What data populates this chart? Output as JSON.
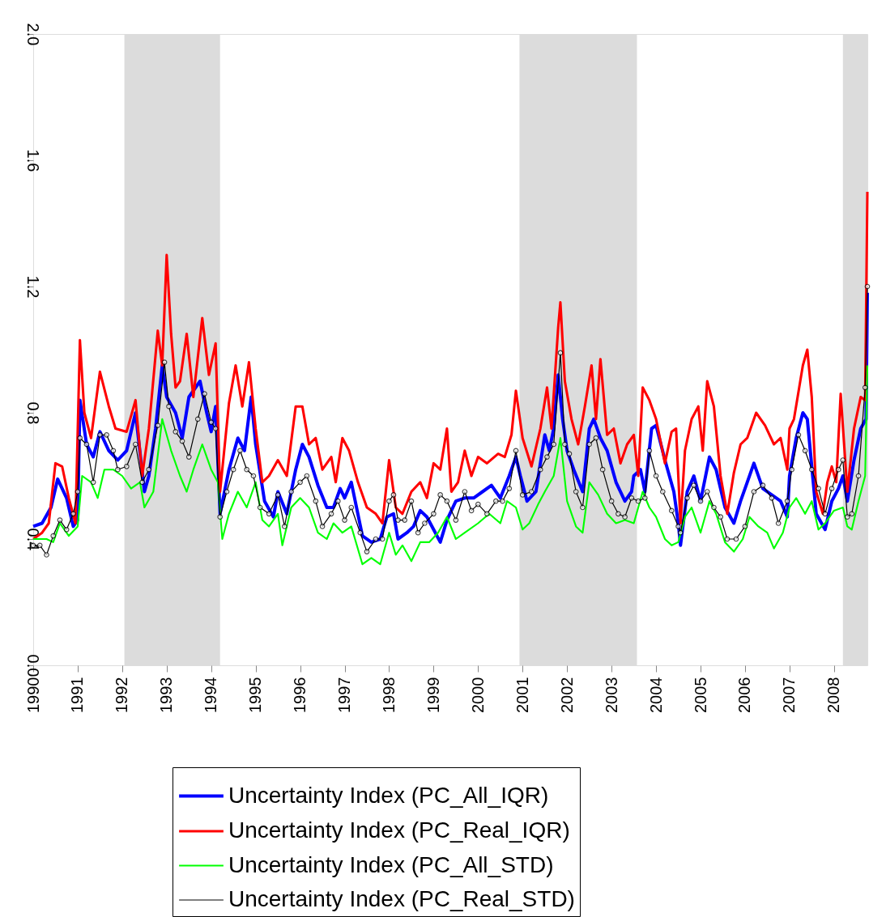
{
  "chart_data": {
    "type": "line",
    "xlim": [
      1990,
      2008.75
    ],
    "xticks": [
      1990,
      1991,
      1992,
      1993,
      1994,
      1995,
      1996,
      1997,
      1998,
      1999,
      2000,
      2001,
      2002,
      2003,
      2004,
      2005,
      2006,
      2007,
      2008
    ],
    "ylim": [
      0,
      2
    ],
    "yticks": [
      {
        "value": 0,
        "label": "0.0"
      },
      0.4,
      0.8,
      1.2,
      1.6,
      {
        "value": 2,
        "label": "2.0"
      }
    ],
    "grid": false,
    "legend": "bottom",
    "bands": [
      {
        "axis": "x",
        "from": 1992.05,
        "to": 1994.2,
        "color": "#dcdcdc"
      },
      {
        "axis": "x",
        "from": 2000.93,
        "to": 2003.57,
        "color": "#dcdcdc"
      },
      {
        "axis": "x",
        "from": 2008.2,
        "to": 2008.75,
        "color": "#dcdcdc"
      }
    ],
    "series": [
      {
        "name": "Uncertainty Index (PC_All_IQR)",
        "color": "#0000ff",
        "x": [
          1990.0,
          1990.2,
          1990.4,
          1990.55,
          1990.75,
          1990.9,
          1991.0,
          1991.05,
          1991.2,
          1991.35,
          1991.5,
          1991.7,
          1991.9,
          1992.1,
          1992.3,
          1992.5,
          1992.6,
          1992.75,
          1992.9,
          1993.0,
          1993.2,
          1993.35,
          1993.5,
          1993.75,
          1993.9,
          1994.0,
          1994.1,
          1994.2,
          1994.4,
          1994.6,
          1994.75,
          1994.9,
          1995.0,
          1995.2,
          1995.4,
          1995.5,
          1995.7,
          1995.9,
          1996.05,
          1996.2,
          1996.4,
          1996.6,
          1996.75,
          1996.9,
          1997.0,
          1997.15,
          1997.4,
          1997.6,
          1997.8,
          1997.95,
          1998.1,
          1998.2,
          1998.4,
          1998.55,
          1998.7,
          1998.85,
          1999.0,
          1999.15,
          1999.3,
          1999.5,
          1999.7,
          1999.9,
          2000.1,
          2000.3,
          2000.5,
          2000.7,
          2000.85,
          2000.95,
          2001.1,
          2001.3,
          2001.5,
          2001.6,
          2001.7,
          2001.8,
          2001.9,
          2002.0,
          2002.15,
          2002.35,
          2002.5,
          2002.6,
          2002.75,
          2002.9,
          2003.1,
          2003.3,
          2003.45,
          2003.5,
          2003.65,
          2003.75,
          2003.9,
          2004.0,
          2004.2,
          2004.4,
          2004.5,
          2004.55,
          2004.7,
          2004.85,
          2005.0,
          2005.2,
          2005.35,
          2005.55,
          2005.75,
          2005.9,
          2006.05,
          2006.2,
          2006.4,
          2006.6,
          2006.8,
          2006.95,
          2007.0,
          2007.15,
          2007.3,
          2007.4,
          2007.5,
          2007.6,
          2007.8,
          2007.95,
          2008.1,
          2008.2,
          2008.3,
          2008.45,
          2008.6,
          2008.72,
          2008.75
        ],
        "values": [
          0.44,
          0.45,
          0.5,
          0.59,
          0.53,
          0.44,
          0.46,
          0.84,
          0.7,
          0.66,
          0.74,
          0.68,
          0.65,
          0.68,
          0.8,
          0.55,
          0.6,
          0.75,
          0.95,
          0.85,
          0.8,
          0.72,
          0.85,
          0.9,
          0.8,
          0.74,
          0.82,
          0.48,
          0.62,
          0.72,
          0.68,
          0.85,
          0.7,
          0.52,
          0.47,
          0.55,
          0.48,
          0.62,
          0.7,
          0.66,
          0.57,
          0.5,
          0.5,
          0.56,
          0.53,
          0.58,
          0.41,
          0.39,
          0.4,
          0.47,
          0.48,
          0.4,
          0.42,
          0.44,
          0.49,
          0.47,
          0.43,
          0.39,
          0.46,
          0.52,
          0.53,
          0.53,
          0.55,
          0.57,
          0.53,
          0.6,
          0.66,
          0.6,
          0.52,
          0.55,
          0.73,
          0.68,
          0.75,
          0.92,
          0.78,
          0.68,
          0.62,
          0.55,
          0.75,
          0.78,
          0.72,
          0.68,
          0.58,
          0.52,
          0.55,
          0.6,
          0.62,
          0.55,
          0.75,
          0.76,
          0.65,
          0.55,
          0.45,
          0.38,
          0.55,
          0.6,
          0.52,
          0.66,
          0.62,
          0.5,
          0.45,
          0.52,
          0.58,
          0.64,
          0.56,
          0.54,
          0.52,
          0.47,
          0.6,
          0.72,
          0.8,
          0.78,
          0.63,
          0.48,
          0.43,
          0.52,
          0.56,
          0.6,
          0.52,
          0.65,
          0.75,
          0.78,
          1.18
        ]
      },
      {
        "name": "Uncertainty Index (PC_Real_IQR)",
        "color": "#ff0000",
        "x": [
          1990.0,
          1990.2,
          1990.35,
          1990.5,
          1990.65,
          1990.8,
          1990.95,
          1991.05,
          1991.15,
          1991.3,
          1991.5,
          1991.7,
          1991.85,
          1992.1,
          1992.3,
          1992.45,
          1992.6,
          1992.8,
          1992.9,
          1993.0,
          1993.1,
          1993.2,
          1993.3,
          1993.45,
          1993.6,
          1993.8,
          1993.95,
          1994.1,
          1994.2,
          1994.4,
          1994.55,
          1994.7,
          1994.85,
          1995.0,
          1995.15,
          1995.3,
          1995.5,
          1995.7,
          1995.9,
          1996.05,
          1996.2,
          1996.35,
          1996.5,
          1996.7,
          1996.8,
          1996.95,
          1997.1,
          1997.3,
          1997.5,
          1997.7,
          1997.85,
          1998.0,
          1998.15,
          1998.3,
          1998.5,
          1998.7,
          1998.85,
          1999.0,
          1999.15,
          1999.3,
          1999.4,
          1999.55,
          1999.7,
          1999.85,
          2000.0,
          2000.2,
          2000.45,
          2000.6,
          2000.75,
          2000.85,
          2001.0,
          2001.2,
          2001.4,
          2001.55,
          2001.65,
          2001.8,
          2001.85,
          2001.95,
          2002.1,
          2002.25,
          2002.4,
          2002.55,
          2002.65,
          2002.75,
          2002.9,
          2003.05,
          2003.2,
          2003.35,
          2003.5,
          2003.6,
          2003.7,
          2003.85,
          2004.0,
          2004.2,
          2004.35,
          2004.45,
          2004.55,
          2004.65,
          2004.8,
          2004.95,
          2005.05,
          2005.15,
          2005.3,
          2005.45,
          2005.6,
          2005.75,
          2005.9,
          2006.05,
          2006.25,
          2006.45,
          2006.65,
          2006.8,
          2006.95,
          2007.0,
          2007.1,
          2007.3,
          2007.4,
          2007.5,
          2007.6,
          2007.75,
          2007.85,
          2007.95,
          2008.05,
          2008.15,
          2008.3,
          2008.45,
          2008.6,
          2008.7,
          2008.75
        ],
        "values": [
          0.4,
          0.42,
          0.45,
          0.64,
          0.63,
          0.53,
          0.45,
          1.03,
          0.8,
          0.72,
          0.93,
          0.82,
          0.75,
          0.74,
          0.84,
          0.6,
          0.75,
          1.06,
          0.95,
          1.3,
          1.05,
          0.88,
          0.9,
          1.05,
          0.85,
          1.1,
          0.92,
          1.02,
          0.55,
          0.83,
          0.95,
          0.82,
          0.96,
          0.75,
          0.58,
          0.6,
          0.65,
          0.6,
          0.82,
          0.82,
          0.7,
          0.72,
          0.62,
          0.66,
          0.58,
          0.72,
          0.68,
          0.58,
          0.5,
          0.48,
          0.45,
          0.65,
          0.5,
          0.48,
          0.55,
          0.58,
          0.53,
          0.64,
          0.62,
          0.75,
          0.55,
          0.58,
          0.68,
          0.6,
          0.66,
          0.64,
          0.67,
          0.66,
          0.73,
          0.87,
          0.72,
          0.63,
          0.75,
          0.88,
          0.75,
          1.07,
          1.15,
          0.9,
          0.78,
          0.7,
          0.82,
          0.95,
          0.78,
          0.97,
          0.73,
          0.75,
          0.64,
          0.7,
          0.73,
          0.6,
          0.88,
          0.84,
          0.78,
          0.64,
          0.74,
          0.75,
          0.45,
          0.68,
          0.78,
          0.82,
          0.68,
          0.9,
          0.82,
          0.6,
          0.48,
          0.61,
          0.7,
          0.72,
          0.8,
          0.76,
          0.7,
          0.72,
          0.62,
          0.75,
          0.78,
          0.95,
          1.0,
          0.85,
          0.55,
          0.48,
          0.58,
          0.63,
          0.58,
          0.86,
          0.55,
          0.75,
          0.85,
          0.84,
          1.5
        ]
      },
      {
        "name": "Uncertainty Index (PC_All_STD)",
        "color": "#00ff00",
        "x": [
          1990.0,
          1990.3,
          1990.45,
          1990.6,
          1990.8,
          1991.0,
          1991.1,
          1991.3,
          1991.45,
          1991.6,
          1991.8,
          1992.0,
          1992.2,
          1992.4,
          1992.5,
          1992.7,
          1992.9,
          1993.1,
          1993.3,
          1993.45,
          1993.6,
          1993.8,
          1994.0,
          1994.15,
          1994.25,
          1994.4,
          1994.6,
          1994.8,
          1995.0,
          1995.15,
          1995.3,
          1995.5,
          1995.6,
          1995.8,
          1996.0,
          1996.2,
          1996.4,
          1996.6,
          1996.75,
          1996.95,
          1997.15,
          1997.4,
          1997.6,
          1997.8,
          1998.0,
          1998.15,
          1998.3,
          1998.5,
          1998.7,
          1998.9,
          1999.1,
          1999.3,
          1999.5,
          1999.7,
          2000.0,
          2000.25,
          2000.5,
          2000.65,
          2000.85,
          2001.0,
          2001.15,
          2001.35,
          2001.5,
          2001.7,
          2001.85,
          2002.0,
          2002.2,
          2002.35,
          2002.5,
          2002.7,
          2002.9,
          2003.1,
          2003.3,
          2003.5,
          2003.7,
          2003.85,
          2004.0,
          2004.2,
          2004.35,
          2004.5,
          2004.65,
          2004.8,
          2005.0,
          2005.2,
          2005.35,
          2005.55,
          2005.75,
          2005.95,
          2006.1,
          2006.3,
          2006.5,
          2006.65,
          2006.85,
          2007.0,
          2007.15,
          2007.35,
          2007.5,
          2007.65,
          2007.8,
          2008.0,
          2008.2,
          2008.3,
          2008.4,
          2008.55,
          2008.7,
          2008.75
        ],
        "values": [
          0.4,
          0.4,
          0.39,
          0.45,
          0.41,
          0.44,
          0.6,
          0.58,
          0.53,
          0.62,
          0.62,
          0.6,
          0.56,
          0.58,
          0.5,
          0.55,
          0.78,
          0.68,
          0.6,
          0.55,
          0.62,
          0.7,
          0.62,
          0.58,
          0.4,
          0.48,
          0.55,
          0.5,
          0.58,
          0.46,
          0.44,
          0.48,
          0.38,
          0.5,
          0.53,
          0.5,
          0.42,
          0.4,
          0.45,
          0.42,
          0.44,
          0.32,
          0.34,
          0.32,
          0.42,
          0.35,
          0.38,
          0.33,
          0.39,
          0.39,
          0.42,
          0.47,
          0.4,
          0.42,
          0.45,
          0.48,
          0.45,
          0.52,
          0.5,
          0.43,
          0.45,
          0.51,
          0.55,
          0.6,
          0.72,
          0.52,
          0.44,
          0.42,
          0.58,
          0.54,
          0.48,
          0.45,
          0.46,
          0.45,
          0.55,
          0.5,
          0.47,
          0.4,
          0.38,
          0.39,
          0.47,
          0.5,
          0.42,
          0.52,
          0.48,
          0.39,
          0.36,
          0.4,
          0.47,
          0.44,
          0.42,
          0.37,
          0.42,
          0.5,
          0.53,
          0.48,
          0.52,
          0.43,
          0.45,
          0.49,
          0.5,
          0.44,
          0.43,
          0.52,
          0.6,
          0.95
        ]
      },
      {
        "name": "Uncertainty Index (PC_Real_STD)",
        "color": "#000000",
        "marker": "circle",
        "x": [
          1990.0,
          1990.15,
          1990.3,
          1990.45,
          1990.6,
          1990.75,
          1990.9,
          1991.0,
          1991.05,
          1991.2,
          1991.35,
          1991.5,
          1991.65,
          1991.8,
          1991.9,
          1992.1,
          1992.3,
          1992.45,
          1992.6,
          1992.8,
          1992.95,
          1993.05,
          1993.2,
          1993.35,
          1993.5,
          1993.7,
          1993.85,
          1994.0,
          1994.1,
          1994.2,
          1994.35,
          1994.5,
          1994.65,
          1994.8,
          1994.95,
          1995.1,
          1995.3,
          1995.5,
          1995.65,
          1995.8,
          1996.0,
          1996.15,
          1996.35,
          1996.5,
          1996.7,
          1996.85,
          1997.0,
          1997.15,
          1997.35,
          1997.5,
          1997.7,
          1997.85,
          1998.0,
          1998.1,
          1998.2,
          1998.35,
          1998.5,
          1998.65,
          1998.8,
          1999.0,
          1999.15,
          1999.3,
          1999.5,
          1999.7,
          1999.85,
          2000.0,
          2000.2,
          2000.4,
          2000.55,
          2000.7,
          2000.85,
          2001.0,
          2001.2,
          2001.4,
          2001.55,
          2001.7,
          2001.85,
          2001.95,
          2002.05,
          2002.2,
          2002.35,
          2002.5,
          2002.65,
          2002.8,
          2003.0,
          2003.15,
          2003.3,
          2003.45,
          2003.6,
          2003.75,
          2003.85,
          2004.0,
          2004.15,
          2004.35,
          2004.5,
          2004.55,
          2004.7,
          2004.85,
          2005.0,
          2005.15,
          2005.3,
          2005.45,
          2005.6,
          2005.8,
          2006.0,
          2006.2,
          2006.4,
          2006.6,
          2006.75,
          2006.95,
          2007.05,
          2007.2,
          2007.35,
          2007.5,
          2007.65,
          2007.8,
          2007.95,
          2008.1,
          2008.2,
          2008.3,
          2008.4,
          2008.55,
          2008.7,
          2008.75
        ],
        "values": [
          0.38,
          0.38,
          0.35,
          0.41,
          0.46,
          0.43,
          0.48,
          0.55,
          0.72,
          0.7,
          0.58,
          0.73,
          0.73,
          0.68,
          0.62,
          0.63,
          0.7,
          0.58,
          0.62,
          0.76,
          0.96,
          0.82,
          0.74,
          0.71,
          0.66,
          0.78,
          0.86,
          0.77,
          0.75,
          0.47,
          0.55,
          0.62,
          0.68,
          0.62,
          0.6,
          0.5,
          0.48,
          0.54,
          0.44,
          0.55,
          0.58,
          0.6,
          0.52,
          0.44,
          0.48,
          0.52,
          0.46,
          0.5,
          0.42,
          0.36,
          0.4,
          0.4,
          0.52,
          0.54,
          0.46,
          0.46,
          0.52,
          0.42,
          0.45,
          0.48,
          0.54,
          0.52,
          0.46,
          0.55,
          0.49,
          0.51,
          0.48,
          0.52,
          0.52,
          0.56,
          0.68,
          0.54,
          0.55,
          0.62,
          0.66,
          0.7,
          0.99,
          0.7,
          0.67,
          0.55,
          0.5,
          0.7,
          0.72,
          0.62,
          0.52,
          0.48,
          0.47,
          0.53,
          0.52,
          0.53,
          0.68,
          0.6,
          0.55,
          0.49,
          0.44,
          0.42,
          0.53,
          0.57,
          0.52,
          0.55,
          0.5,
          0.47,
          0.4,
          0.4,
          0.44,
          0.55,
          0.57,
          0.53,
          0.45,
          0.52,
          0.62,
          0.73,
          0.68,
          0.62,
          0.56,
          0.48,
          0.56,
          0.62,
          0.65,
          0.47,
          0.48,
          0.6,
          0.88,
          1.2
        ]
      }
    ]
  }
}
